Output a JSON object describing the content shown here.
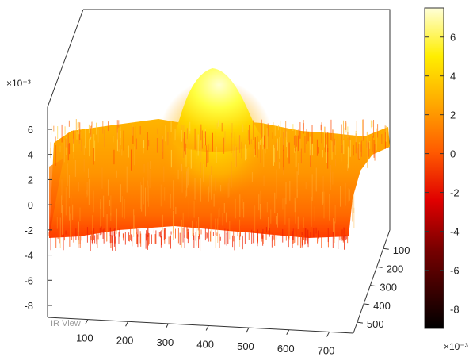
{
  "chart_data": {
    "type": "surface",
    "title": "",
    "xlabel": "",
    "ylabel": "",
    "zlabel": "",
    "x_ticks": [
      100,
      200,
      300,
      400,
      500,
      600,
      700
    ],
    "y_ticks": [
      100,
      200,
      300,
      400,
      500
    ],
    "z_ticks": [
      -8,
      -6,
      -4,
      -2,
      0,
      2,
      4,
      6
    ],
    "z_multiplier": "×10⁻³",
    "xlim": [
      0,
      760
    ],
    "ylim": [
      0,
      560
    ],
    "zlim": [
      -9,
      7.5
    ],
    "peak": {
      "x": 380,
      "y": 120,
      "value": 7.2
    },
    "baseline_range": [
      -3,
      1.5
    ],
    "grid": false,
    "colormap": "hot",
    "colorbar": {
      "range": [
        -9,
        7.5
      ],
      "ticks": [
        6,
        4,
        2,
        0,
        -2,
        -4,
        -6,
        -8
      ],
      "multiplier": "×10⁻³",
      "placement": "right"
    },
    "watermark": "IR View"
  }
}
